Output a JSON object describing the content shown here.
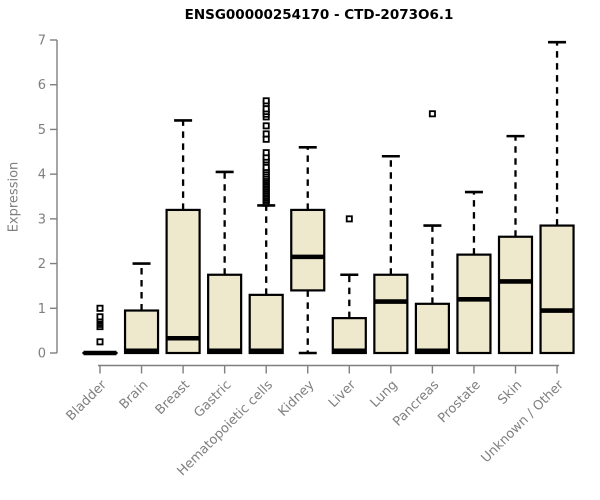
{
  "title": "ENSG00000254170 - CTD-2073O6.1",
  "chart_data": {
    "type": "boxplot",
    "title": "ENSG00000254170 - CTD-2073O6.1",
    "xlabel": "",
    "ylabel": "Expression",
    "ylim": [
      0,
      7
    ],
    "yticks": [
      0,
      1,
      2,
      3,
      4,
      5,
      6,
      7
    ],
    "grid": false,
    "legend": "none",
    "categories": [
      "Bladder",
      "Brain",
      "Breast",
      "Gastric",
      "Hematopoietic cells",
      "Kidney",
      "Liver",
      "Lung",
      "Pancreas",
      "Prostate",
      "Skin",
      "Unknown / Other"
    ],
    "series": [
      {
        "name": "Bladder",
        "whisker_low": 0,
        "q1": 0,
        "median": 0,
        "q3": 0,
        "whisker_high": 0,
        "outliers": [
          0.25,
          0.59,
          0.64,
          0.68,
          0.72,
          0.76,
          0.81,
          1.0
        ]
      },
      {
        "name": "Brain",
        "whisker_low": 0,
        "q1": 0,
        "median": 0.05,
        "q3": 0.95,
        "whisker_high": 2.0,
        "outliers": []
      },
      {
        "name": "Breast",
        "whisker_low": 0,
        "q1": 0,
        "median": 0.33,
        "q3": 3.2,
        "whisker_high": 5.2,
        "outliers": []
      },
      {
        "name": "Gastric",
        "whisker_low": 0,
        "q1": 0,
        "median": 0.05,
        "q3": 1.75,
        "whisker_high": 4.05,
        "outliers": []
      },
      {
        "name": "Hematopoietic cells",
        "whisker_low": 0,
        "q1": 0,
        "median": 0.05,
        "q3": 1.3,
        "whisker_high": 3.3,
        "outliers": [
          3.35,
          3.39,
          3.43,
          3.47,
          3.51,
          3.55,
          3.59,
          3.63,
          3.67,
          3.71,
          3.75,
          3.79,
          3.83,
          3.87,
          3.91,
          3.95,
          4.0,
          4.05,
          4.1,
          4.15,
          4.27,
          4.32,
          4.38,
          4.48,
          4.78,
          4.9,
          5.08,
          5.28,
          5.34,
          5.4,
          5.46,
          5.58,
          5.64
        ]
      },
      {
        "name": "Kidney",
        "whisker_low": 0,
        "q1": 1.4,
        "median": 2.15,
        "q3": 3.2,
        "whisker_high": 4.6,
        "outliers": []
      },
      {
        "name": "Liver",
        "whisker_low": 0,
        "q1": 0,
        "median": 0.05,
        "q3": 0.78,
        "whisker_high": 1.75,
        "outliers": [
          3.0
        ]
      },
      {
        "name": "Lung",
        "whisker_low": 0,
        "q1": 0,
        "median": 1.15,
        "q3": 1.75,
        "whisker_high": 4.4,
        "outliers": []
      },
      {
        "name": "Pancreas",
        "whisker_low": 0,
        "q1": 0,
        "median": 0.05,
        "q3": 1.1,
        "whisker_high": 2.85,
        "outliers": [
          5.35
        ]
      },
      {
        "name": "Prostate",
        "whisker_low": 0,
        "q1": 0,
        "median": 1.2,
        "q3": 2.2,
        "whisker_high": 3.6,
        "outliers": []
      },
      {
        "name": "Skin",
        "whisker_low": 0,
        "q1": 0,
        "median": 1.6,
        "q3": 2.6,
        "whisker_high": 4.85,
        "outliers": []
      },
      {
        "name": "Unknown / Other",
        "whisker_low": 0,
        "q1": 0,
        "median": 0.95,
        "q3": 2.85,
        "whisker_high": 6.95,
        "outliers": []
      }
    ],
    "colors": {
      "box_fill": "#EEE8CD",
      "box_stroke": "#000000",
      "median": "#000000",
      "whisker": "#000000",
      "outlier_stroke": "#000000",
      "outlier_fill": "#ffffff",
      "axis": "#7f7f7f",
      "tick_label": "#7f7f7f",
      "title": "#000000",
      "background": "#ffffff"
    }
  }
}
